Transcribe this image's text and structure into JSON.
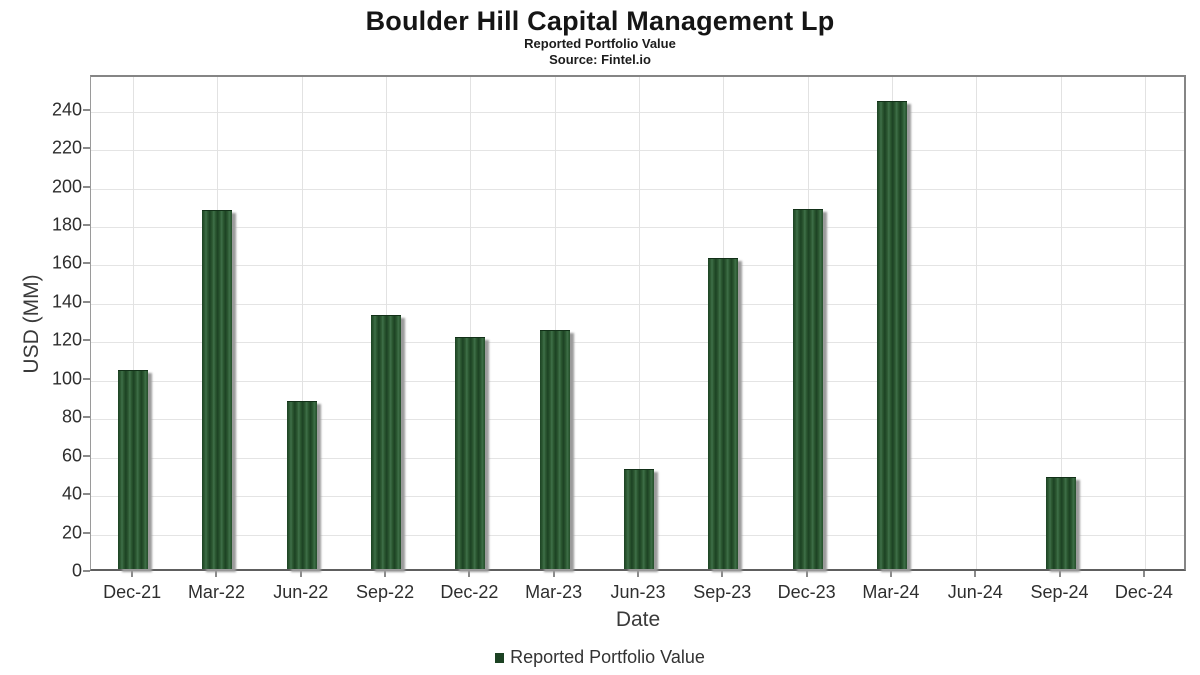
{
  "header": {
    "title": "Boulder Hill Capital Management Lp",
    "subtitle": "Reported Portfolio Value",
    "source": "Source: Fintel.io"
  },
  "chart_data": {
    "type": "bar",
    "title": "Boulder Hill Capital Management Lp",
    "subtitle": "Reported Portfolio Value",
    "source": "Source: Fintel.io",
    "xlabel": "Date",
    "ylabel": "USD (MM)",
    "categories": [
      "Dec-21",
      "Mar-22",
      "Jun-22",
      "Sep-22",
      "Dec-22",
      "Mar-23",
      "Jun-23",
      "Sep-23",
      "Dec-23",
      "Mar-24",
      "Jun-24",
      "Sep-24",
      "Dec-24"
    ],
    "values": [
      103,
      186,
      87,
      131.5,
      120,
      124,
      51.5,
      161,
      186.5,
      243,
      0,
      47.5,
      0
    ],
    "yticks": [
      0,
      20,
      40,
      60,
      80,
      100,
      120,
      140,
      160,
      180,
      200,
      220,
      240
    ],
    "ylim": [
      0,
      258
    ],
    "grid": true,
    "legend": {
      "label": "Reported Portfolio Value",
      "position": "bottom"
    },
    "colors": {
      "bar_dark": "#1c4223",
      "bar_mid": "#2d5a33",
      "bar_light": "#3f7049",
      "bar_shadow": "#9b9b9b",
      "gridline": "#e4e4e4",
      "axis_frame": "#858585"
    }
  }
}
